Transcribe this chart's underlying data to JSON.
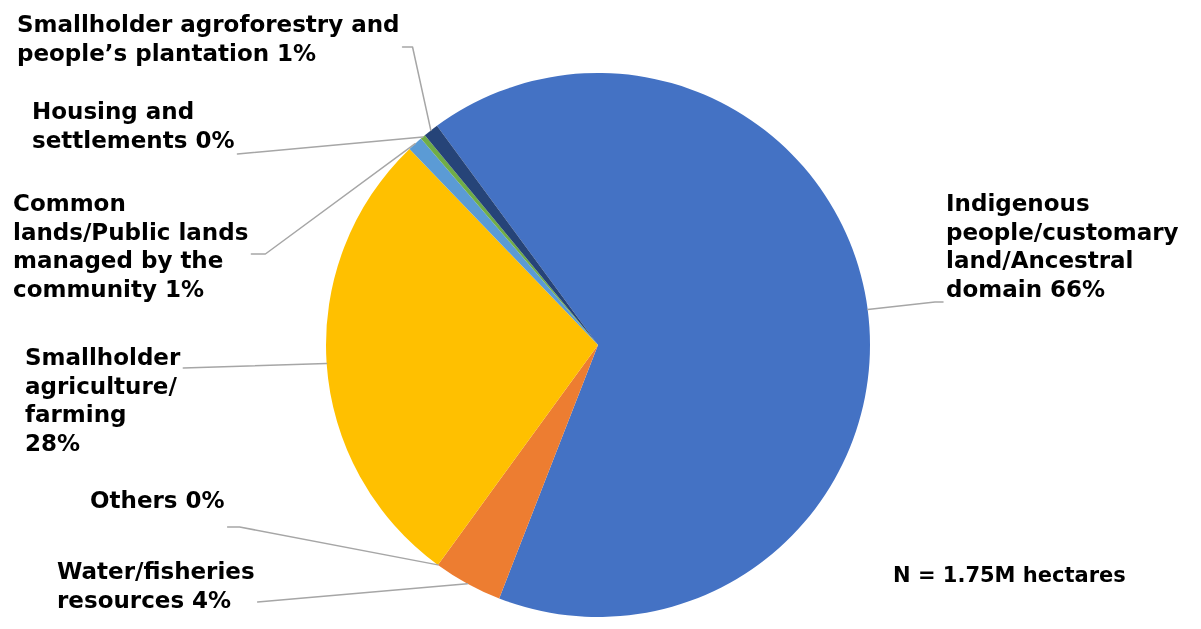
{
  "chart_data": {
    "type": "pie",
    "categories": [
      "Indigenous people/customary land/Ancestral domain",
      "Water/fisheries resources",
      "Others",
      "Smallholder agriculture/farming",
      "Common lands/Public lands managed by the community",
      "Housing and settlements",
      "Smallholder agroforestry and people’s plantation"
    ],
    "values": [
      66,
      4.1,
      0,
      27.8,
      0.9,
      0.3,
      0.9
    ],
    "value_labels": [
      "66%",
      "4%",
      "0%",
      "28%",
      "1%",
      "0%",
      "1%"
    ],
    "colors": [
      "#4472c4",
      "#ed7d31",
      "#a5a5a5",
      "#ffc000",
      "#5b9bd5",
      "#70ad47",
      "#264478"
    ],
    "annotations": [
      "N = 1.75M hectares"
    ]
  }
}
